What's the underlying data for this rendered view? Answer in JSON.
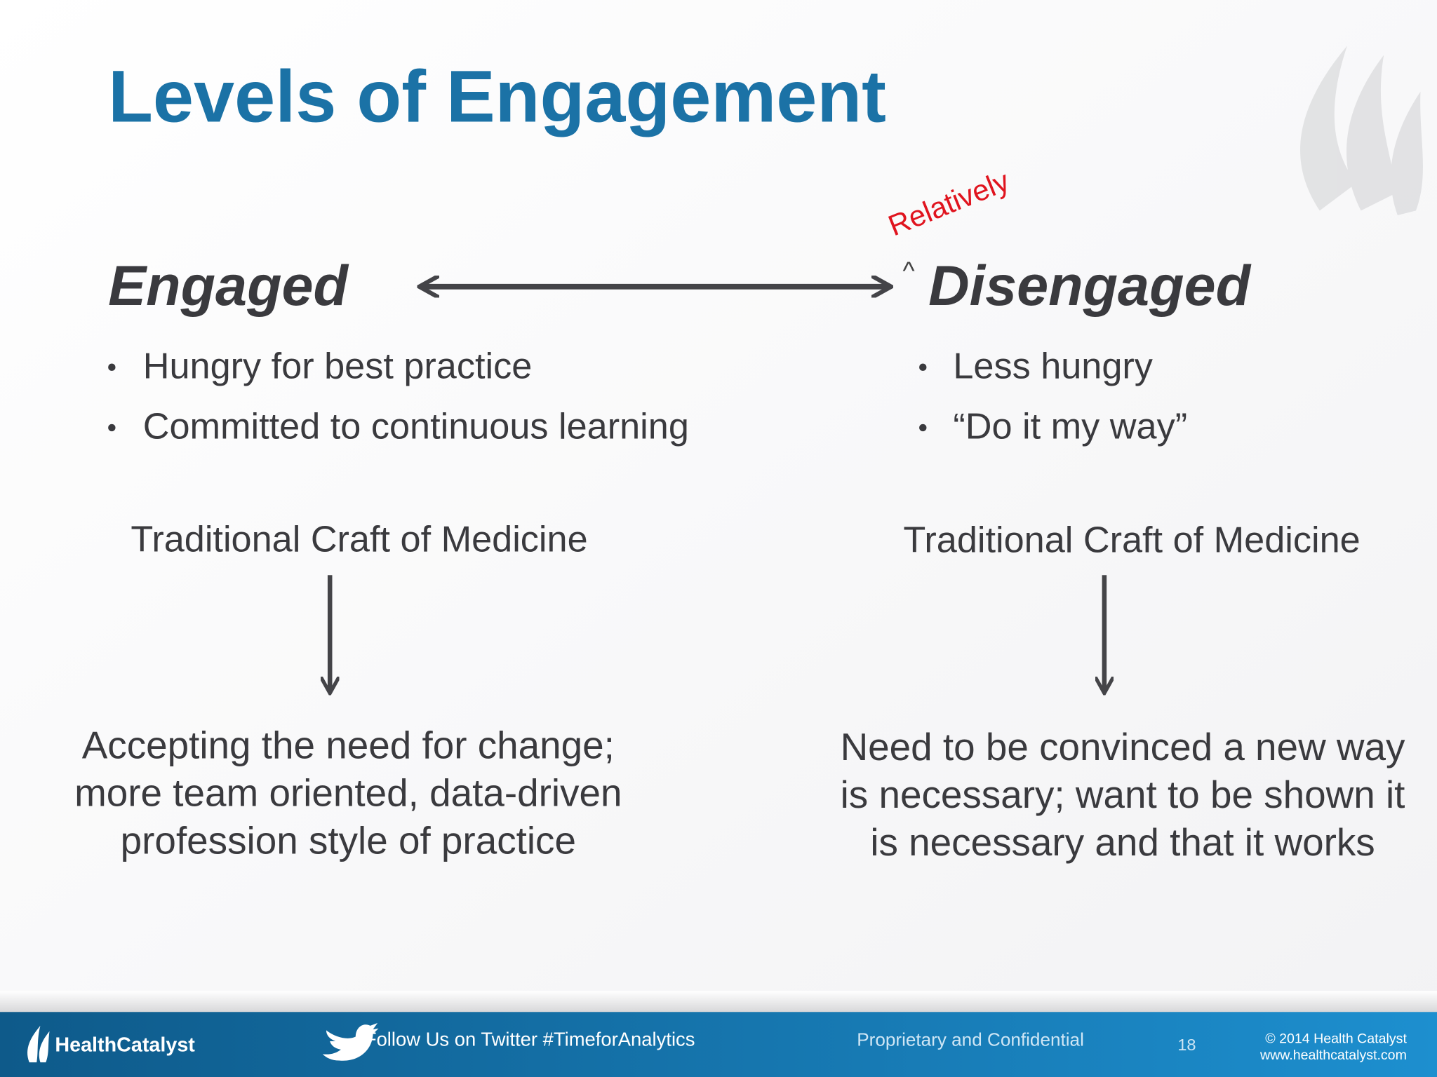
{
  "slide": {
    "title": "Levels of Engagement",
    "annotation": "Relatively",
    "insert_mark": "^",
    "left": {
      "heading": "Engaged",
      "bullets": [
        "Hungry for best practice",
        "Committed to continuous learning"
      ],
      "source": "Traditional Craft of Medicine",
      "result": [
        "Accepting the need for change;",
        "more team oriented, data-driven",
        "profession style of practice"
      ]
    },
    "right": {
      "heading": "Disengaged",
      "bullets": [
        "Less hungry",
        "“Do it my way”"
      ],
      "source": "Traditional Craft of Medicine",
      "result": [
        "Need to be convinced a new way",
        "is necessary; want to be shown it",
        "is necessary and that it works"
      ]
    }
  },
  "footer": {
    "logo": "HealthCatalyst",
    "twitter": "Follow Us on Twitter #TimeforAnalytics",
    "confidential": "Proprietary and Confidential",
    "page": 18,
    "copyright": "© 2014 Health Catalyst",
    "website": "www.healthcatalyst.com"
  }
}
